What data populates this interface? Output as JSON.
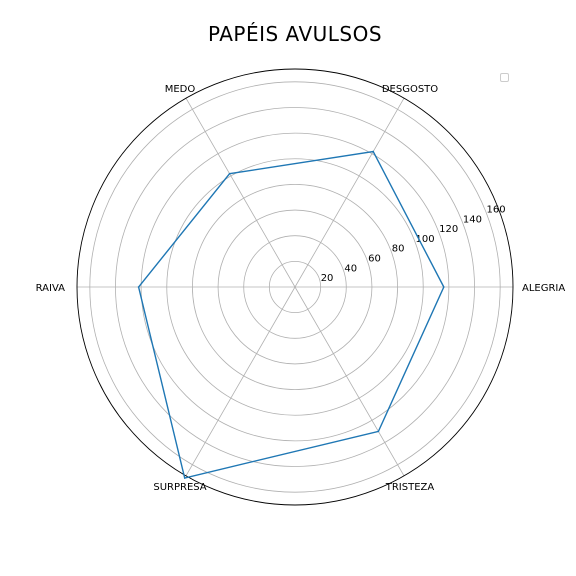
{
  "chart_data": {
    "type": "radar",
    "title": "PAPÉIS AVULSOS",
    "categories": [
      "ALEGRIA",
      "DESGOSTO",
      "MEDO",
      "RAIVA",
      "SURPRESA",
      "TRISTEZA"
    ],
    "series": [
      {
        "values": [
          116,
          122,
          102,
          122,
          172,
          130
        ],
        "color": "#1f77b4"
      }
    ],
    "r_ticks": [
      20,
      40,
      60,
      80,
      100,
      120,
      140,
      160
    ],
    "r_max": 170,
    "grid": true,
    "legend": "top-right (empty)"
  }
}
